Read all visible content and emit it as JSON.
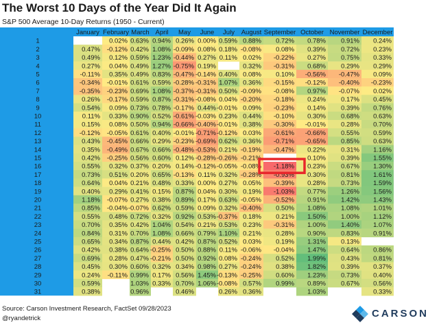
{
  "header": {
    "title": "The Worst 10 Days of the Year Did It Again",
    "subtitle": "S&P 500 Average 10-Day Returns (1950 - Current)"
  },
  "footer": {
    "source": "Source: Carson Investment Research, FactSet 09/28/2023",
    "handle": "@ryandetrick",
    "brand": "CARSON"
  },
  "colors": {
    "day_column": "#1E9BE6",
    "header_band": "#1E9BE6",
    "highlight_box": "#E8262B",
    "most_negative": "#F8696B",
    "zero": "#FFEB84",
    "most_positive": "#63BE7B"
  },
  "chart_data": {
    "type": "heatmap",
    "title": "The Worst 10 Days of the Year Did It Again",
    "subtitle": "S&P 500 Average 10-Day Returns (1950 - Current)",
    "columns": [
      "January",
      "February",
      "March",
      "April",
      "May",
      "June",
      "July",
      "August",
      "September",
      "October",
      "November",
      "December"
    ],
    "rows": [
      "1",
      "2",
      "3",
      "4",
      "5",
      "6",
      "7",
      "8",
      "9",
      "10",
      "11",
      "12",
      "13",
      "14",
      "15",
      "16",
      "17",
      "18",
      "19",
      "20",
      "21",
      "22",
      "23",
      "24",
      "25",
      "26",
      "27",
      "28",
      "29",
      "30",
      "31"
    ],
    "highlight": {
      "row": "16",
      "column": "September",
      "value": -1.18
    },
    "values": [
      [
        null,
        0.02,
        0.63,
        0.94,
        0.26,
        0.0,
        0.59,
        0.88,
        0.72,
        0.78,
        0.91,
        0.24
      ],
      [
        0.47,
        -0.12,
        0.42,
        1.08,
        -0.09,
        0.08,
        0.18,
        -0.08,
        0.08,
        0.39,
        0.72,
        0.23
      ],
      [
        0.49,
        0.12,
        0.59,
        1.23,
        -0.44,
        0.27,
        0.11,
        0.02,
        -0.22,
        0.27,
        0.75,
        0.33
      ],
      [
        0.27,
        0.04,
        0.49,
        1.27,
        -0.75,
        0.19,
        null,
        0.32,
        -0.31,
        0.68,
        0.29,
        0.29
      ],
      [
        -0.11,
        0.35,
        0.49,
        0.83,
        -0.47,
        -0.14,
        0.4,
        0.08,
        0.1,
        -0.56,
        -0.47,
        0.09
      ],
      [
        -0.34,
        -0.01,
        0.61,
        0.59,
        -0.28,
        -0.31,
        1.07,
        0.36,
        -0.15,
        -0.12,
        -0.4,
        -0.23
      ],
      [
        -0.35,
        -0.23,
        0.69,
        1.08,
        -0.37,
        -0.31,
        0.5,
        -0.09,
        -0.08,
        0.97,
        -0.07,
        0.02
      ],
      [
        0.26,
        -0.17,
        0.59,
        0.87,
        -0.31,
        -0.08,
        0.04,
        -0.2,
        -0.18,
        0.24,
        0.17,
        0.45
      ],
      [
        0.54,
        0.09,
        0.73,
        0.78,
        -0.17,
        0.44,
        -0.01,
        0.09,
        -0.23,
        0.14,
        0.39,
        0.76
      ],
      [
        0.11,
        0.33,
        0.9,
        0.52,
        -0.61,
        -0.03,
        0.23,
        0.44,
        -0.1,
        0.3,
        0.68,
        0.63
      ],
      [
        0.15,
        0.08,
        0.5,
        0.94,
        -0.66,
        -0.4,
        -0.01,
        0.38,
        -0.3,
        -0.01,
        0.28,
        0.7
      ],
      [
        -0.12,
        -0.05,
        0.61,
        0.4,
        -0.01,
        -0.71,
        -0.12,
        0.03,
        -0.61,
        -0.66,
        0.55,
        0.59
      ],
      [
        0.43,
        -0.45,
        0.66,
        0.29,
        -0.23,
        -0.69,
        0.62,
        0.36,
        -0.71,
        -0.65,
        0.85,
        0.63
      ],
      [
        0.35,
        -0.49,
        0.67,
        0.66,
        -0.48,
        -0.53,
        0.21,
        -0.19,
        -0.47,
        0.22,
        0.31,
        1.16
      ],
      [
        0.42,
        -0.25,
        0.56,
        0.6,
        0.12,
        -0.28,
        -0.26,
        -0.21,
        null,
        0.1,
        0.39,
        1.55
      ],
      [
        0.55,
        0.32,
        0.37,
        0.2,
        0.14,
        -0.12,
        -0.05,
        -0.08,
        -1.18,
        0.23,
        0.67,
        1.3
      ],
      [
        0.73,
        0.51,
        0.2,
        0.65,
        -0.13,
        0.11,
        0.32,
        -0.28,
        -0.93,
        0.3,
        0.81,
        1.61
      ],
      [
        0.64,
        0.04,
        0.21,
        0.48,
        0.33,
        0.0,
        0.27,
        0.05,
        -0.39,
        0.28,
        0.73,
        1.59
      ],
      [
        0.4,
        0.29,
        0.41,
        0.15,
        0.87,
        0.04,
        0.3,
        0.19,
        -1.03,
        0.77,
        1.26,
        1.56
      ],
      [
        1.18,
        -0.07,
        0.27,
        0.38,
        0.89,
        0.17,
        0.63,
        -0.05,
        -0.52,
        0.91,
        1.42,
        1.43
      ],
      [
        0.85,
        -0.04,
        -0.07,
        0.62,
        0.59,
        0.09,
        0.32,
        -0.4,
        0.5,
        1.08,
        1.08,
        1.01
      ],
      [
        0.55,
        0.48,
        0.72,
        0.32,
        0.92,
        0.53,
        -0.37,
        0.18,
        0.21,
        1.5,
        1.0,
        1.12
      ],
      [
        0.7,
        0.35,
        0.42,
        1.04,
        0.54,
        0.21,
        0.53,
        0.23,
        -0.31,
        1.0,
        1.4,
        1.07
      ],
      [
        0.84,
        0.31,
        0.7,
        1.08,
        0.66,
        0.79,
        1.1,
        0.21,
        0.28,
        0.9,
        0.83,
        0.91
      ],
      [
        0.65,
        0.34,
        0.87,
        0.44,
        0.42,
        0.87,
        0.52,
        0.03,
        0.19,
        1.31,
        0.13,
        null
      ],
      [
        0.42,
        0.38,
        0.64,
        -0.25,
        0.5,
        0.88,
        0.11,
        -0.06,
        -0.04,
        1.47,
        0.64,
        0.86
      ],
      [
        0.69,
        0.28,
        0.47,
        -0.21,
        0.5,
        0.92,
        0.08,
        -0.24,
        0.52,
        1.99,
        0.43,
        0.81
      ],
      [
        0.45,
        0.3,
        0.6,
        0.32,
        0.34,
        0.98,
        0.27,
        -0.24,
        0.38,
        1.82,
        0.39,
        0.37
      ],
      [
        0.24,
        -0.11,
        0.99,
        0.17,
        0.56,
        1.45,
        -0.13,
        -0.25,
        0.6,
        1.23,
        0.73,
        0.4
      ],
      [
        0.59,
        null,
        1.03,
        0.33,
        0.7,
        1.06,
        -0.08,
        0.57,
        0.99,
        0.89,
        0.67,
        0.56
      ],
      [
        0.38,
        null,
        0.96,
        null,
        0.46,
        null,
        0.26,
        0.36,
        null,
        1.03,
        null,
        0.33
      ]
    ]
  }
}
